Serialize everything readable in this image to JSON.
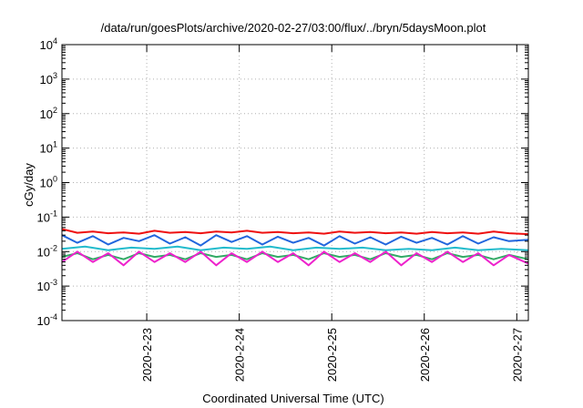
{
  "chart_data": {
    "type": "line",
    "title": "/data/run/goesPlots/archive/2020-02-27/03:00/flux/../bryn/5daysMoon.plot",
    "xlabel": "Coordinated Universal Time (UTC)",
    "ylabel": "cGy/day",
    "yscale": "log",
    "ylim": [
      0.0001,
      10000
    ],
    "grid": true,
    "xlim": [
      "2020-02-22T02:00",
      "2020-02-27T03:00"
    ],
    "xticks": [
      {
        "date": "2020-02-23T00:00",
        "label": "2020-2-23"
      },
      {
        "date": "2020-02-24T00:00",
        "label": "2020-2-24"
      },
      {
        "date": "2020-02-25T00:00",
        "label": "2020-2-25"
      },
      {
        "date": "2020-02-26T00:00",
        "label": "2020-2-26"
      },
      {
        "date": "2020-02-27T00:00",
        "label": "2020-2-27"
      }
    ],
    "yticks": [
      {
        "value": 0.0001,
        "base": "10",
        "exp": "-4"
      },
      {
        "value": 0.001,
        "base": "10",
        "exp": "-3"
      },
      {
        "value": 0.01,
        "base": "10",
        "exp": "-2"
      },
      {
        "value": 0.1,
        "base": "10",
        "exp": "-1"
      },
      {
        "value": 1,
        "base": "10",
        "exp": "0"
      },
      {
        "value": 10,
        "base": "10",
        "exp": "1"
      },
      {
        "value": 100,
        "base": "10",
        "exp": "2"
      },
      {
        "value": 1000,
        "base": "10",
        "exp": "3"
      },
      {
        "value": 10000,
        "base": "10",
        "exp": "4"
      }
    ],
    "series": [
      {
        "color": "#ee1111",
        "x": [
          "2020-02-22T02:00",
          "2020-02-22T06:00",
          "2020-02-22T10:00",
          "2020-02-22T14:00",
          "2020-02-22T18:00",
          "2020-02-22T22:00",
          "2020-02-23T02:00",
          "2020-02-23T06:00",
          "2020-02-23T10:00",
          "2020-02-23T14:00",
          "2020-02-23T18:00",
          "2020-02-23T22:00",
          "2020-02-24T02:00",
          "2020-02-24T06:00",
          "2020-02-24T10:00",
          "2020-02-24T14:00",
          "2020-02-24T18:00",
          "2020-02-24T22:00",
          "2020-02-25T02:00",
          "2020-02-25T06:00",
          "2020-02-25T10:00",
          "2020-02-25T14:00",
          "2020-02-25T18:00",
          "2020-02-25T22:00",
          "2020-02-26T02:00",
          "2020-02-26T06:00",
          "2020-02-26T10:00",
          "2020-02-26T14:00",
          "2020-02-26T18:00",
          "2020-02-26T22:00",
          "2020-02-27T03:00"
        ],
        "y": [
          0.045,
          0.035,
          0.038,
          0.034,
          0.036,
          0.033,
          0.04,
          0.035,
          0.037,
          0.034,
          0.038,
          0.036,
          0.04,
          0.035,
          0.037,
          0.034,
          0.036,
          0.033,
          0.038,
          0.035,
          0.037,
          0.034,
          0.036,
          0.033,
          0.037,
          0.034,
          0.036,
          0.033,
          0.038,
          0.034,
          0.032
        ]
      },
      {
        "color": "#2266dd",
        "x": [
          "2020-02-22T02:00",
          "2020-02-22T06:00",
          "2020-02-22T10:00",
          "2020-02-22T14:00",
          "2020-02-22T18:00",
          "2020-02-22T22:00",
          "2020-02-23T02:00",
          "2020-02-23T06:00",
          "2020-02-23T10:00",
          "2020-02-23T14:00",
          "2020-02-23T18:00",
          "2020-02-23T22:00",
          "2020-02-24T02:00",
          "2020-02-24T06:00",
          "2020-02-24T10:00",
          "2020-02-24T14:00",
          "2020-02-24T18:00",
          "2020-02-24T22:00",
          "2020-02-25T02:00",
          "2020-02-25T06:00",
          "2020-02-25T10:00",
          "2020-02-25T14:00",
          "2020-02-25T18:00",
          "2020-02-25T22:00",
          "2020-02-26T02:00",
          "2020-02-26T06:00",
          "2020-02-26T10:00",
          "2020-02-26T14:00",
          "2020-02-26T18:00",
          "2020-02-26T22:00",
          "2020-02-27T03:00"
        ],
        "y": [
          0.03,
          0.018,
          0.028,
          0.016,
          0.025,
          0.02,
          0.03,
          0.017,
          0.026,
          0.015,
          0.03,
          0.019,
          0.028,
          0.016,
          0.027,
          0.018,
          0.025,
          0.015,
          0.028,
          0.017,
          0.026,
          0.016,
          0.027,
          0.018,
          0.025,
          0.016,
          0.028,
          0.017,
          0.026,
          0.02,
          0.022
        ]
      },
      {
        "color": "#22bbcc",
        "x": [
          "2020-02-22T02:00",
          "2020-02-22T08:00",
          "2020-02-22T14:00",
          "2020-02-22T20:00",
          "2020-02-23T02:00",
          "2020-02-23T08:00",
          "2020-02-23T14:00",
          "2020-02-23T20:00",
          "2020-02-24T02:00",
          "2020-02-24T08:00",
          "2020-02-24T14:00",
          "2020-02-24T20:00",
          "2020-02-25T02:00",
          "2020-02-25T08:00",
          "2020-02-25T14:00",
          "2020-02-25T20:00",
          "2020-02-26T02:00",
          "2020-02-26T08:00",
          "2020-02-26T14:00",
          "2020-02-26T20:00",
          "2020-02-27T03:00"
        ],
        "y": [
          0.012,
          0.014,
          0.011,
          0.013,
          0.012,
          0.014,
          0.011,
          0.013,
          0.012,
          0.014,
          0.011,
          0.013,
          0.012,
          0.013,
          0.011,
          0.012,
          0.011,
          0.013,
          0.011,
          0.012,
          0.011
        ]
      },
      {
        "color": "#33aa66",
        "x": [
          "2020-02-22T02:00",
          "2020-02-22T06:00",
          "2020-02-22T10:00",
          "2020-02-22T14:00",
          "2020-02-22T18:00",
          "2020-02-22T22:00",
          "2020-02-23T02:00",
          "2020-02-23T06:00",
          "2020-02-23T10:00",
          "2020-02-23T14:00",
          "2020-02-23T18:00",
          "2020-02-23T22:00",
          "2020-02-24T02:00",
          "2020-02-24T06:00",
          "2020-02-24T10:00",
          "2020-02-24T14:00",
          "2020-02-24T18:00",
          "2020-02-24T22:00",
          "2020-02-25T02:00",
          "2020-02-25T06:00",
          "2020-02-25T10:00",
          "2020-02-25T14:00",
          "2020-02-25T18:00",
          "2020-02-25T22:00",
          "2020-02-26T02:00",
          "2020-02-26T06:00",
          "2020-02-26T10:00",
          "2020-02-26T14:00",
          "2020-02-26T18:00",
          "2020-02-26T22:00",
          "2020-02-27T03:00"
        ],
        "y": [
          0.007,
          0.009,
          0.006,
          0.008,
          0.006,
          0.009,
          0.007,
          0.008,
          0.006,
          0.009,
          0.007,
          0.008,
          0.006,
          0.009,
          0.007,
          0.008,
          0.006,
          0.009,
          0.007,
          0.008,
          0.006,
          0.009,
          0.007,
          0.008,
          0.006,
          0.009,
          0.007,
          0.008,
          0.006,
          0.008,
          0.006
        ]
      },
      {
        "color": "#ee22cc",
        "x": [
          "2020-02-22T02:00",
          "2020-02-22T06:00",
          "2020-02-22T10:00",
          "2020-02-22T14:00",
          "2020-02-22T18:00",
          "2020-02-22T22:00",
          "2020-02-23T02:00",
          "2020-02-23T06:00",
          "2020-02-23T10:00",
          "2020-02-23T14:00",
          "2020-02-23T18:00",
          "2020-02-23T22:00",
          "2020-02-24T02:00",
          "2020-02-24T06:00",
          "2020-02-24T10:00",
          "2020-02-24T14:00",
          "2020-02-24T18:00",
          "2020-02-24T22:00",
          "2020-02-25T02:00",
          "2020-02-25T06:00",
          "2020-02-25T10:00",
          "2020-02-25T14:00",
          "2020-02-25T18:00",
          "2020-02-25T22:00",
          "2020-02-26T02:00",
          "2020-02-26T06:00",
          "2020-02-26T10:00",
          "2020-02-26T14:00",
          "2020-02-26T18:00",
          "2020-02-26T22:00",
          "2020-02-27T03:00"
        ],
        "y": [
          0.005,
          0.01,
          0.005,
          0.009,
          0.004,
          0.01,
          0.005,
          0.009,
          0.005,
          0.01,
          0.004,
          0.009,
          0.005,
          0.01,
          0.005,
          0.009,
          0.004,
          0.01,
          0.005,
          0.009,
          0.005,
          0.01,
          0.004,
          0.009,
          0.005,
          0.01,
          0.005,
          0.009,
          0.004,
          0.008,
          0.0045
        ]
      }
    ]
  }
}
